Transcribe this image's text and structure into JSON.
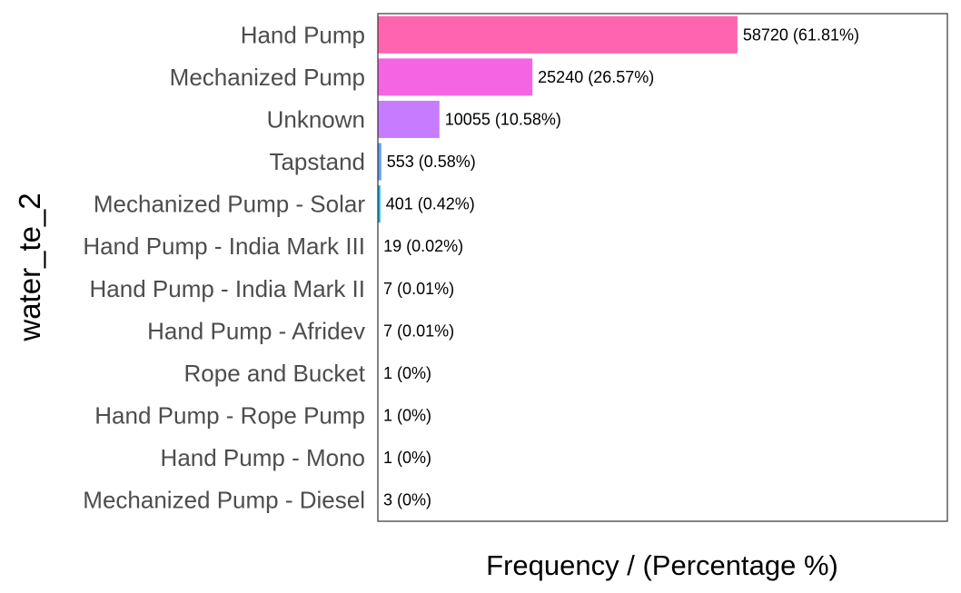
{
  "chart_data": {
    "type": "bar",
    "orientation": "horizontal",
    "title": "",
    "xlabel": "Frequency / (Percentage %)",
    "ylabel": "water_te_2",
    "categories": [
      "Hand Pump",
      "Mechanized Pump",
      "Unknown",
      "Tapstand",
      "Mechanized Pump - Solar",
      "Hand Pump - India Mark III",
      "Hand Pump - India Mark II",
      "Hand Pump - Afridev",
      "Rope and Bucket",
      "Hand Pump - Rope Pump",
      "Hand Pump - Mono",
      "Mechanized Pump - Diesel"
    ],
    "values": [
      58720,
      25240,
      10055,
      553,
      401,
      19,
      7,
      7,
      1,
      1,
      1,
      3
    ],
    "labels": [
      "58720 (61.81%)",
      "25240 (26.57%)",
      "10055 (10.58%)",
      "553 (0.58%)",
      "401 (0.42%)",
      "19 (0.02%)",
      "7 (0.01%)",
      "7 (0.01%)",
      "1 (0%)",
      "1 (0%)",
      "1 (0%)",
      "3 (0%)"
    ],
    "colors": [
      "#FF64B0",
      "#F564E3",
      "#C77CFF",
      "#619CFF",
      "#00B4EF",
      "#00BFC4",
      "#00C0AF",
      "#00BA38",
      "#7CAE00",
      "#B79F00",
      "#DE8C00",
      "#F8766D"
    ],
    "xlim": [
      0,
      93000
    ],
    "grid": false,
    "legend": "none"
  }
}
